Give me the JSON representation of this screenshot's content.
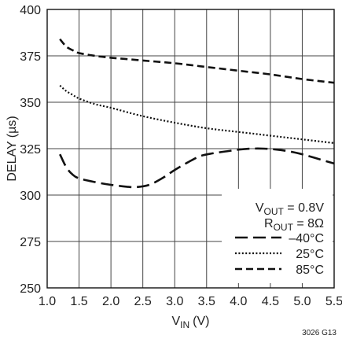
{
  "chart_data": {
    "type": "line",
    "xlabel_main": "V",
    "xlabel_sub": "IN",
    "xlabel_unit": "(V)",
    "ylabel": "DELAY  (µs)",
    "xlim": [
      1.0,
      5.5
    ],
    "ylim": [
      250,
      400
    ],
    "xticks": [
      1.0,
      1.5,
      2.0,
      2.5,
      3.0,
      3.5,
      4.0,
      4.5,
      5.0,
      5.5
    ],
    "xtick_labels": [
      "1.0",
      "1.5",
      "2.0",
      "2.5",
      "3.0",
      "3.5",
      "4.0",
      "4.5",
      "5.0",
      "5.5"
    ],
    "yticks": [
      250,
      275,
      300,
      325,
      350,
      375,
      400
    ],
    "ytick_labels": [
      "250",
      "275",
      "300",
      "325",
      "350",
      "375",
      "400"
    ],
    "grid": true,
    "legend_placement": "bottom-right",
    "conditions": [
      {
        "main": "V",
        "sub": "OUT",
        "rest": " = 0.8V"
      },
      {
        "main": "R",
        "sub": "OUT",
        "rest": " = 8Ω"
      }
    ],
    "series": [
      {
        "name": "–40°C",
        "style": "long-dash",
        "x": [
          1.2,
          1.3,
          1.4,
          1.5,
          1.75,
          2.0,
          2.25,
          2.4,
          2.6,
          2.8,
          3.0,
          3.2,
          3.4,
          3.6,
          3.8,
          4.0,
          4.2,
          4.4,
          4.6,
          4.8,
          5.0,
          5.2,
          5.5
        ],
        "y": [
          322,
          315,
          311,
          309,
          307,
          305.5,
          304.5,
          304.3,
          305.5,
          309,
          313.5,
          317.5,
          321,
          322.5,
          323.5,
          324.5,
          325,
          325,
          324.5,
          323.5,
          322,
          320,
          317
        ]
      },
      {
        "name": "25°C",
        "style": "dotted",
        "x": [
          1.2,
          1.3,
          1.4,
          1.5,
          1.75,
          2.0,
          2.5,
          3.0,
          3.5,
          4.0,
          4.5,
          5.0,
          5.5
        ],
        "y": [
          359,
          356,
          354,
          352,
          349,
          347,
          342.5,
          339,
          336,
          334,
          332,
          330,
          328
        ]
      },
      {
        "name": "85°C",
        "style": "dashed",
        "x": [
          1.2,
          1.3,
          1.4,
          1.5,
          1.75,
          2.0,
          2.5,
          3.0,
          3.5,
          4.0,
          4.5,
          5.0,
          5.5
        ],
        "y": [
          384,
          380,
          378,
          376.5,
          375,
          374,
          372.5,
          371,
          369,
          367,
          365,
          362.5,
          360.5
        ]
      }
    ],
    "figure_code": "3026 G13"
  }
}
